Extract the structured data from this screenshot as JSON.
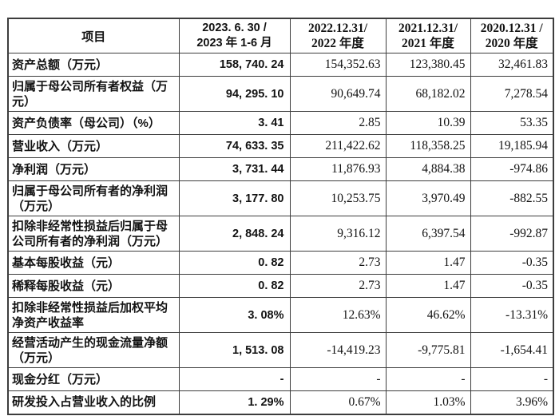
{
  "colors": {
    "background": "#ffffff",
    "border": "#3d3d3d",
    "text": "#121212"
  },
  "table": {
    "header": {
      "item_col": "项目",
      "periods": [
        {
          "line1": "2023. 6. 30 /",
          "line2": "2023 年 1-6 月"
        },
        {
          "line1": "2022.12.31/",
          "line2": "2022 年度"
        },
        {
          "line1": "2021.12.31/",
          "line2": "2021 年度"
        },
        {
          "line1": "2020.12.31 /",
          "line2": "2020 年度"
        }
      ]
    },
    "rows": [
      {
        "label": "资产总额（万元）",
        "values": [
          "158, 740. 24",
          "154,352.63",
          "123,380.45",
          "32,461.83"
        ]
      },
      {
        "label": "归属于母公司所有者权益（万元）",
        "values": [
          "94, 295. 10",
          "90,649.74",
          "68,182.02",
          "7,278.54"
        ]
      },
      {
        "label": "资产负债率（母公司）（%）",
        "values": [
          "3. 41",
          "2.85",
          "10.39",
          "53.35"
        ]
      },
      {
        "label": "营业收入（万元）",
        "values": [
          "74, 633. 35",
          "211,422.62",
          "118,358.25",
          "19,185.94"
        ]
      },
      {
        "label": "净利润（万元）",
        "values": [
          "3, 731. 44",
          "11,876.93",
          "4,884.38",
          "-974.86"
        ]
      },
      {
        "label": "归属于母公司所有者的净利润（万元）",
        "values": [
          "3, 177. 80",
          "10,253.75",
          "3,970.49",
          "-882.55"
        ]
      },
      {
        "label": "扣除非经常性损益后归属于母公司所有者的净利润（万元）",
        "values": [
          "2, 848. 24",
          "9,316.12",
          "6,397.54",
          "-992.87"
        ]
      },
      {
        "label": "基本每股收益（元）",
        "values": [
          "0. 82",
          "2.73",
          "1.47",
          "-0.35"
        ]
      },
      {
        "label": "稀释每股收益（元）",
        "values": [
          "0. 82",
          "2.73",
          "1.47",
          "-0.35"
        ]
      },
      {
        "label": "扣除非经常性损益后加权平均净资产收益率",
        "values": [
          "3. 08%",
          "12.63%",
          "46.62%",
          "-13.31%"
        ]
      },
      {
        "label": "经营活动产生的现金流量净额（万元）",
        "values": [
          "1, 513. 08",
          "-14,419.23",
          "-9,775.81",
          "-1,654.41"
        ]
      },
      {
        "label": "现金分红（万元）",
        "values": [
          "-",
          "-",
          "-",
          "-"
        ]
      },
      {
        "label": "研发投入占营业收入的比例",
        "values": [
          "1. 29%",
          "0.67%",
          "1.03%",
          "3.96%"
        ]
      }
    ]
  }
}
